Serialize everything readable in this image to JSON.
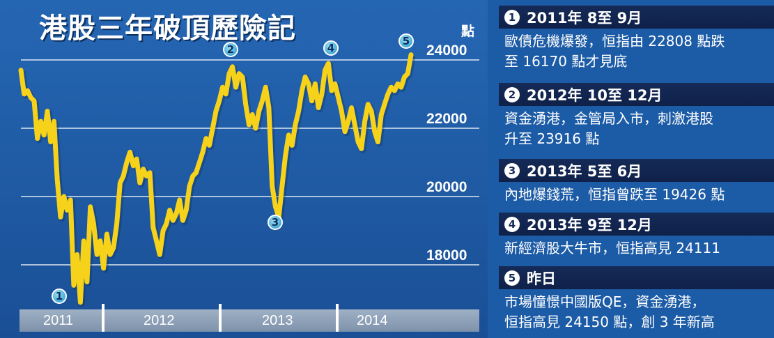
{
  "title": "港股三年破頂歷險記",
  "unit_label": "點",
  "colors": {
    "background": "#1e5ea8",
    "line": "#f7d21b",
    "event_header": "#152a57",
    "marker": "#4fb3db"
  },
  "chart_data": {
    "type": "line",
    "title": "港股三年破頂歷險記",
    "ylabel": "點",
    "ylim": [
      17000,
      25000
    ],
    "yticks": [
      18000,
      20000,
      22000,
      24000
    ],
    "xlim": [
      0,
      144
    ],
    "x_categories": [
      "2011",
      "2012",
      "2013",
      "2014"
    ],
    "grid": true,
    "series": [
      {
        "values": [
          [
            0,
            23700
          ],
          [
            1,
            23000
          ],
          [
            2,
            23100
          ],
          [
            3,
            22900
          ],
          [
            4,
            22800
          ],
          [
            5,
            21700
          ],
          [
            6,
            22200
          ],
          [
            7,
            21800
          ],
          [
            8,
            22500
          ],
          [
            9,
            21600
          ],
          [
            10,
            22200
          ],
          [
            11,
            20500
          ],
          [
            12,
            19400
          ],
          [
            13,
            20000
          ],
          [
            14,
            19600
          ],
          [
            15,
            19900
          ],
          [
            16,
            17400
          ],
          [
            17,
            18300
          ],
          [
            18,
            16900
          ],
          [
            19,
            18700
          ],
          [
            20,
            17500
          ],
          [
            21,
            19700
          ],
          [
            22,
            19200
          ],
          [
            23,
            18300
          ],
          [
            24,
            18700
          ],
          [
            25,
            17900
          ],
          [
            26,
            18900
          ],
          [
            27,
            18300
          ],
          [
            28,
            18500
          ],
          [
            29,
            19200
          ],
          [
            30,
            20400
          ],
          [
            31,
            20600
          ],
          [
            32,
            21000
          ],
          [
            33,
            21300
          ],
          [
            34,
            20900
          ],
          [
            35,
            21100
          ],
          [
            36,
            20400
          ],
          [
            37,
            20800
          ],
          [
            38,
            20600
          ],
          [
            39,
            20700
          ],
          [
            40,
            19100
          ],
          [
            41,
            18700
          ],
          [
            42,
            18300
          ],
          [
            43,
            19000
          ],
          [
            44,
            19200
          ],
          [
            45,
            19600
          ],
          [
            46,
            19300
          ],
          [
            47,
            19500
          ],
          [
            48,
            19900
          ],
          [
            49,
            19300
          ],
          [
            50,
            19600
          ],
          [
            51,
            20300
          ],
          [
            52,
            20600
          ],
          [
            53,
            20700
          ],
          [
            54,
            21000
          ],
          [
            55,
            21300
          ],
          [
            56,
            21700
          ],
          [
            57,
            21500
          ],
          [
            58,
            22000
          ],
          [
            59,
            22500
          ],
          [
            60,
            22800
          ],
          [
            61,
            23200
          ],
          [
            62,
            23000
          ],
          [
            63,
            23600
          ],
          [
            64,
            23800
          ],
          [
            65,
            23200
          ],
          [
            66,
            23600
          ],
          [
            67,
            23500
          ],
          [
            68,
            22700
          ],
          [
            69,
            22100
          ],
          [
            70,
            22400
          ],
          [
            71,
            22000
          ],
          [
            72,
            22500
          ],
          [
            73,
            22800
          ],
          [
            74,
            23200
          ],
          [
            75,
            22600
          ],
          [
            76,
            20300
          ],
          [
            77,
            19700
          ],
          [
            78,
            19400
          ],
          [
            79,
            20300
          ],
          [
            80,
            21200
          ],
          [
            81,
            21800
          ],
          [
            82,
            21500
          ],
          [
            83,
            22100
          ],
          [
            84,
            22500
          ],
          [
            85,
            23100
          ],
          [
            86,
            23500
          ],
          [
            87,
            23300
          ],
          [
            88,
            22800
          ],
          [
            89,
            23300
          ],
          [
            90,
            22600
          ],
          [
            91,
            23000
          ],
          [
            92,
            23700
          ],
          [
            93,
            23900
          ],
          [
            94,
            23100
          ],
          [
            95,
            23300
          ],
          [
            96,
            22900
          ],
          [
            97,
            22500
          ],
          [
            98,
            21900
          ],
          [
            99,
            22200
          ],
          [
            100,
            22600
          ],
          [
            101,
            22100
          ],
          [
            102,
            21600
          ],
          [
            103,
            21400
          ],
          [
            104,
            22200
          ],
          [
            105,
            22700
          ],
          [
            106,
            22500
          ],
          [
            107,
            21900
          ],
          [
            108,
            21600
          ],
          [
            109,
            22400
          ],
          [
            110,
            22700
          ],
          [
            111,
            23000
          ],
          [
            112,
            23200
          ],
          [
            113,
            23100
          ],
          [
            114,
            23300
          ],
          [
            115,
            23200
          ],
          [
            116,
            23500
          ],
          [
            117,
            23600
          ],
          [
            118,
            24150
          ]
        ]
      }
    ],
    "annotations": [
      {
        "label": "1",
        "x": 18,
        "y": 16900,
        "position": "below"
      },
      {
        "label": "2",
        "x": 64,
        "y": 23800,
        "position": "above"
      },
      {
        "label": "3",
        "x": 78,
        "y": 19400,
        "position": "below"
      },
      {
        "label": "4",
        "x": 93,
        "y": 23900,
        "position": "above"
      },
      {
        "label": "5",
        "x": 118,
        "y": 24150,
        "position": "above"
      }
    ]
  },
  "events": [
    {
      "num": "1",
      "head": "2011年 8至 9月",
      "body_lines": [
        "歐債危機爆發，恒指由 22808 點跌",
        "至 16170 點才見底"
      ]
    },
    {
      "num": "2",
      "head": "2012年 10至 12月",
      "body_lines": [
        "資金湧港，金管局入市，刺激港股",
        "升至 23916 點"
      ]
    },
    {
      "num": "3",
      "head": "2013年 5至 6月",
      "body_lines": [
        "內地爆錢荒，恒指曾跌至 19426 點"
      ]
    },
    {
      "num": "4",
      "head": "2013年 9至 12月",
      "body_lines": [
        "新經濟股大牛市，恒指高見 24111"
      ]
    },
    {
      "num": "5",
      "head": "昨日",
      "body_lines": [
        "市場憧憬中國版QE，資金湧港，",
        "恒指高見 24150 點，創 3 年新高"
      ]
    }
  ]
}
